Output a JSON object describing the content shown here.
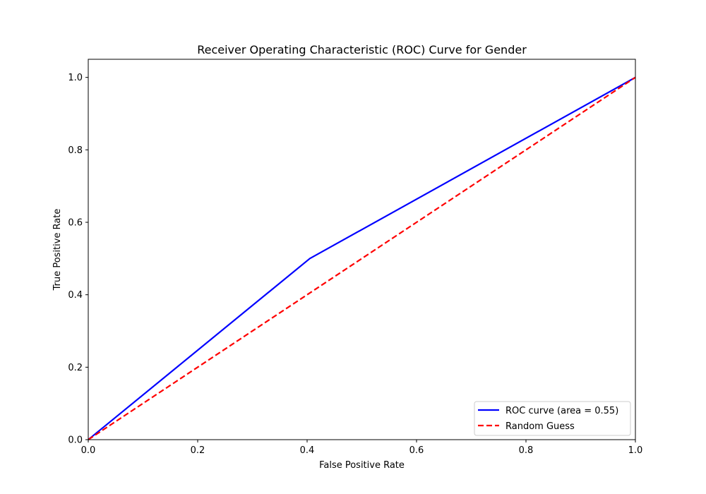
{
  "chart_data": {
    "type": "line",
    "title": "Receiver Operating Characteristic (ROC) Curve for Gender",
    "xlabel": "False Positive Rate",
    "ylabel": "True Positive Rate",
    "xlim": [
      0.0,
      1.0
    ],
    "ylim": [
      0.0,
      1.05
    ],
    "xticks": [
      0.0,
      0.2,
      0.4,
      0.6,
      0.8,
      1.0
    ],
    "xtick_labels": [
      "0.0",
      "0.2",
      "0.4",
      "0.6",
      "0.8",
      "1.0"
    ],
    "yticks": [
      0.0,
      0.2,
      0.4,
      0.6,
      0.8,
      1.0
    ],
    "ytick_labels": [
      "0.0",
      "0.2",
      "0.4",
      "0.6",
      "0.8",
      "1.0"
    ],
    "grid": false,
    "legend_position": "lower-right",
    "series": [
      {
        "name": "ROC curve (area = 0.55)",
        "color": "#0000ff",
        "style": "solid",
        "x": [
          0.0,
          0.405,
          1.0
        ],
        "y": [
          0.0,
          0.5,
          1.0
        ]
      },
      {
        "name": "Random Guess",
        "color": "#ff0000",
        "style": "dashed",
        "x": [
          0.0,
          1.0
        ],
        "y": [
          0.0,
          1.0
        ]
      }
    ]
  }
}
